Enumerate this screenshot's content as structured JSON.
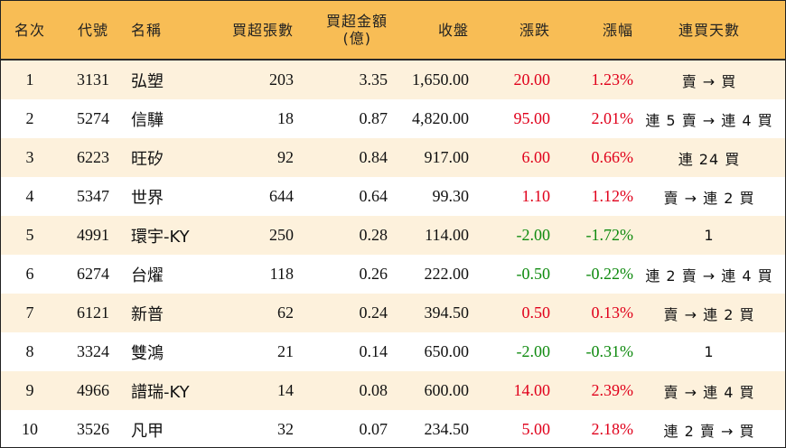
{
  "colors": {
    "header_bg": "#f8bd55",
    "row_alt_bg": "#fdf1dc",
    "up": "#e0001b",
    "down": "#0f8a0f"
  },
  "headers": {
    "rank": "名次",
    "code": "代號",
    "name": "名稱",
    "net_lots": "買超張數",
    "amount_line1": "買超金額",
    "amount_line2": "(億)",
    "close": "收盤",
    "change": "漲跌",
    "pct": "漲幅",
    "streak": "連買天數"
  },
  "rows": [
    {
      "rank": "1",
      "code": "3131",
      "name": "弘塑",
      "lots": "203",
      "amount": "3.35",
      "close": "1,650.00",
      "change": "20.00",
      "pct": "1.23%",
      "dir": "up",
      "streak": "賣 → 買"
    },
    {
      "rank": "2",
      "code": "5274",
      "name": "信驊",
      "lots": "18",
      "amount": "0.87",
      "close": "4,820.00",
      "change": "95.00",
      "pct": "2.01%",
      "dir": "up",
      "streak": "連 5 賣 → 連 4 買"
    },
    {
      "rank": "3",
      "code": "6223",
      "name": "旺矽",
      "lots": "92",
      "amount": "0.84",
      "close": "917.00",
      "change": "6.00",
      "pct": "0.66%",
      "dir": "up",
      "streak": "連 24 買"
    },
    {
      "rank": "4",
      "code": "5347",
      "name": "世界",
      "lots": "644",
      "amount": "0.64",
      "close": "99.30",
      "change": "1.10",
      "pct": "1.12%",
      "dir": "up",
      "streak": "賣 → 連 2 買"
    },
    {
      "rank": "5",
      "code": "4991",
      "name": "環宇-KY",
      "lots": "250",
      "amount": "0.28",
      "close": "114.00",
      "change": "-2.00",
      "pct": "-1.72%",
      "dir": "down",
      "streak": "1"
    },
    {
      "rank": "6",
      "code": "6274",
      "name": "台燿",
      "lots": "118",
      "amount": "0.26",
      "close": "222.00",
      "change": "-0.50",
      "pct": "-0.22%",
      "dir": "down",
      "streak": "連 2 賣 → 連 4 買"
    },
    {
      "rank": "7",
      "code": "6121",
      "name": "新普",
      "lots": "62",
      "amount": "0.24",
      "close": "394.50",
      "change": "0.50",
      "pct": "0.13%",
      "dir": "up",
      "streak": "賣 → 連 2 買"
    },
    {
      "rank": "8",
      "code": "3324",
      "name": "雙鴻",
      "lots": "21",
      "amount": "0.14",
      "close": "650.00",
      "change": "-2.00",
      "pct": "-0.31%",
      "dir": "down",
      "streak": "1"
    },
    {
      "rank": "9",
      "code": "4966",
      "name": "譜瑞-KY",
      "lots": "14",
      "amount": "0.08",
      "close": "600.00",
      "change": "14.00",
      "pct": "2.39%",
      "dir": "up",
      "streak": "賣 → 連 4 買"
    },
    {
      "rank": "10",
      "code": "3526",
      "name": "凡甲",
      "lots": "32",
      "amount": "0.07",
      "close": "234.50",
      "change": "5.00",
      "pct": "2.18%",
      "dir": "up",
      "streak": "連 2 賣 → 買"
    }
  ]
}
